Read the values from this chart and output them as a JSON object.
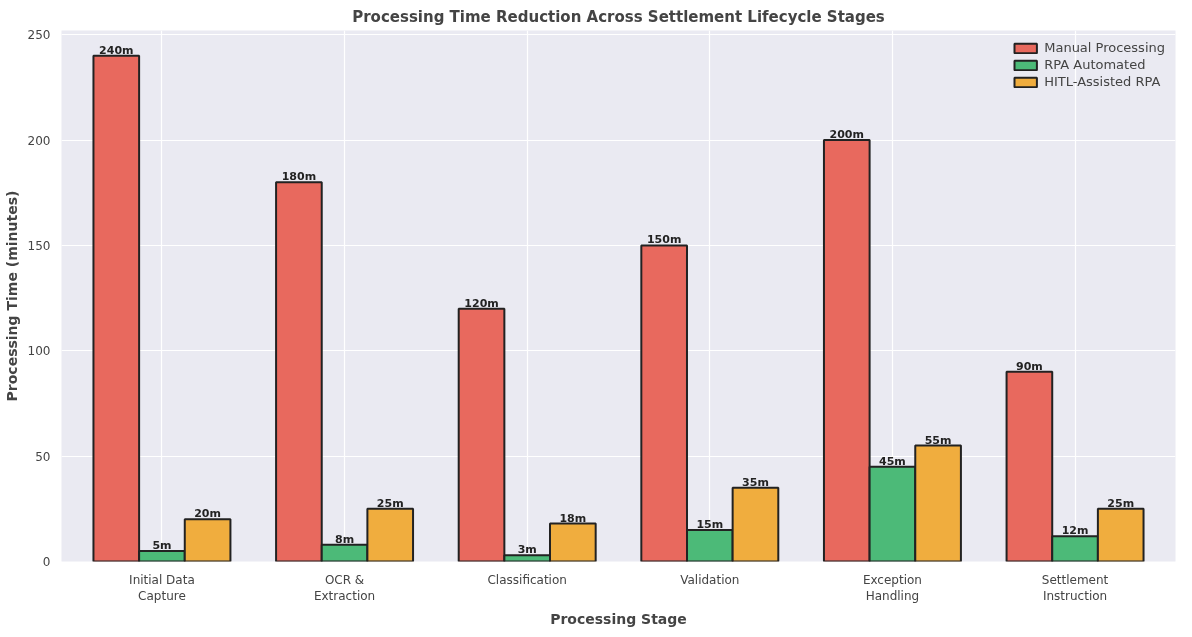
{
  "chart_data": {
    "type": "bar",
    "title": "Processing Time Reduction Across Settlement Lifecycle Stages",
    "xlabel": "Processing Stage",
    "ylabel": "Processing Time (minutes)",
    "categories": [
      "Initial Data\nCapture",
      "OCR &\nExtraction",
      "Classification",
      "Validation",
      "Exception\nHandling",
      "Settlement\nInstruction"
    ],
    "series": [
      {
        "name": "Manual Processing",
        "color": "#e8695e",
        "values": [
          240,
          180,
          120,
          150,
          200,
          90
        ],
        "value_labels": [
          "240m",
          "180m",
          "120m",
          "150m",
          "200m",
          "90m"
        ]
      },
      {
        "name": "RPA Automated",
        "color": "#4cba78",
        "values": [
          5,
          8,
          3,
          15,
          45,
          12
        ],
        "value_labels": [
          "5m",
          "8m",
          "3m",
          "15m",
          "45m",
          "12m"
        ]
      },
      {
        "name": "HITL-Assisted RPA",
        "color": "#f0ad3e",
        "values": [
          20,
          25,
          18,
          35,
          55,
          25
        ],
        "value_labels": [
          "20m",
          "25m",
          "18m",
          "35m",
          "55m",
          "25m"
        ]
      }
    ],
    "ylim": [
      0,
      252
    ],
    "yticks": [
      0,
      50,
      100,
      150,
      200,
      250
    ],
    "grid": true,
    "legend": "top right"
  }
}
